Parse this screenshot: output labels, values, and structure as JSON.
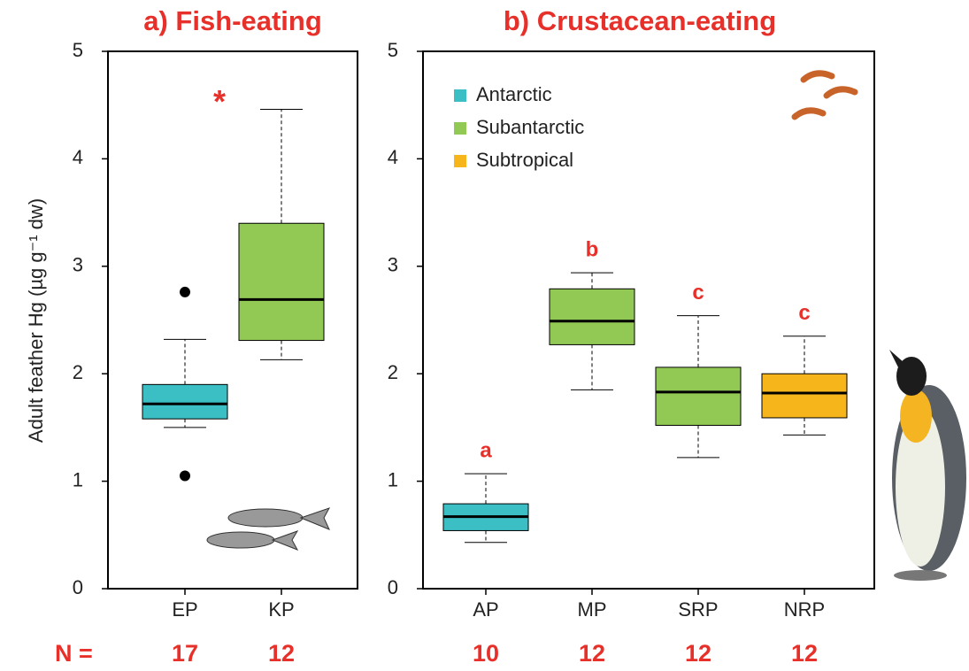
{
  "chart_data": [
    {
      "type": "box",
      "title": "a) Fish-eating",
      "y_label": "Adult feather Hg (µg g⁻¹ dw)",
      "categories": [
        "EP",
        "KP"
      ],
      "boxes": [
        {
          "color": "#3bbfc4",
          "whisker_low": 1.5,
          "q1": 1.58,
          "median": 1.72,
          "q3": 1.9,
          "whisker_high": 2.32,
          "outliers": [
            2.76,
            1.05
          ]
        },
        {
          "color": "#92c954",
          "whisker_low": 2.13,
          "q1": 2.31,
          "median": 2.69,
          "q3": 3.4,
          "whisker_high": 4.46,
          "outliers": []
        }
      ],
      "labels": [
        null,
        "*"
      ],
      "n_label": "N =",
      "n": [
        17,
        12
      ],
      "ylim": [
        0,
        5
      ],
      "yticks": [
        0,
        1,
        2,
        3,
        4,
        5
      ]
    },
    {
      "type": "box",
      "title": "b) Crustacean-eating",
      "categories": [
        "AP",
        "MP",
        "SRP",
        "NRP"
      ],
      "boxes": [
        {
          "color": "#3bbfc4",
          "whisker_low": 0.43,
          "q1": 0.54,
          "median": 0.67,
          "q3": 0.79,
          "whisker_high": 1.07,
          "outliers": []
        },
        {
          "color": "#92c954",
          "whisker_low": 1.85,
          "q1": 2.27,
          "median": 2.49,
          "q3": 2.79,
          "whisker_high": 2.94,
          "outliers": []
        },
        {
          "color": "#92c954",
          "whisker_low": 1.22,
          "q1": 1.52,
          "median": 1.83,
          "q3": 2.06,
          "whisker_high": 2.54,
          "outliers": []
        },
        {
          "color": "#f7b51c",
          "whisker_low": 1.43,
          "q1": 1.59,
          "median": 1.82,
          "q3": 2.0,
          "whisker_high": 2.35,
          "outliers": []
        }
      ],
      "labels": [
        "a",
        "b",
        "c",
        "c"
      ],
      "n": [
        10,
        12,
        12,
        12
      ],
      "legend": [
        {
          "name": "Antarctic",
          "color": "#3bbfc4"
        },
        {
          "name": "Subantarctic",
          "color": "#92c954"
        },
        {
          "name": "Subtropical",
          "color": "#f7b51c"
        }
      ],
      "ylim": [
        0,
        5
      ],
      "yticks": [
        0,
        1,
        2,
        3,
        4,
        5
      ]
    }
  ]
}
